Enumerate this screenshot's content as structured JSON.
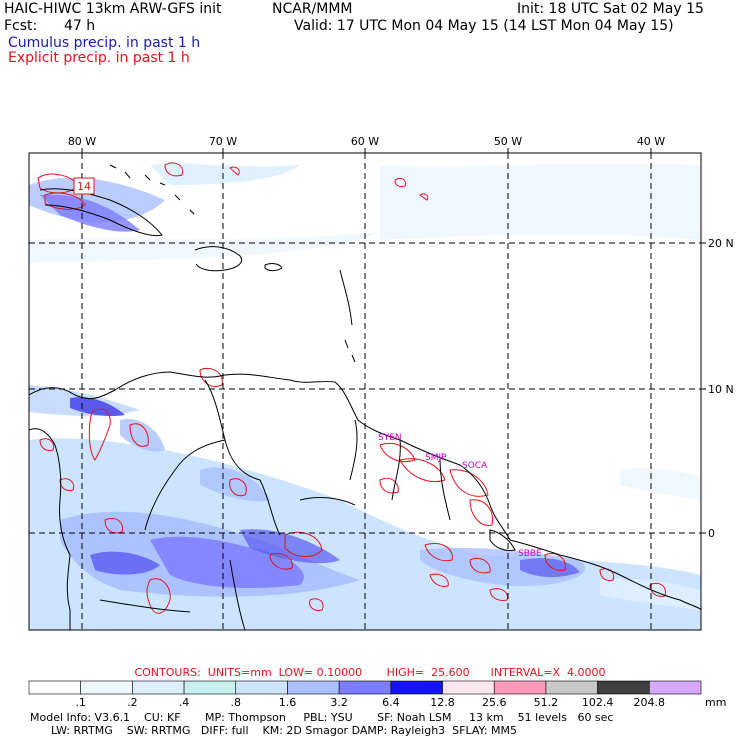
{
  "header": {
    "model_title": "HAIC-HIWC 13km ARW-GFS init",
    "center": "NCAR/MMM",
    "init": "Init: 18 UTC Sat 02 May 15",
    "fcst_label": "Fcst:",
    "fcst_value": "47 h",
    "valid": "Valid: 17 UTC Mon 04 May 15 (14 LST Mon 04 May 15)",
    "cumulus_label": "Cumulus precip. in past 1 h",
    "explicit_label": "Explicit precip. in past 1 h"
  },
  "map": {
    "lon_labels": [
      "80 W",
      "70 W",
      "60 W",
      "50 W",
      "40 W"
    ],
    "lat_labels": [
      "20 N",
      "10 N",
      "0"
    ],
    "station_labels": [
      "SYEN",
      "SMJP",
      "SOCA",
      "SBBE"
    ],
    "marker": "14"
  },
  "colors": {
    "cumulus": "#5a5af0",
    "explicit": "#e0141e",
    "grid": "#000000",
    "coast": "#000000"
  },
  "contours": {
    "label": "CONTOURS:",
    "units": "UNITS=mm",
    "low": "LOW= 0.10000",
    "high": "HIGH=  25.600",
    "interval": "INTERVAL=X  4.0000"
  },
  "colorbar": {
    "levels": [
      ".1",
      ".2",
      ".4",
      ".8",
      "1.6",
      "3.2",
      "6.4",
      "12.8",
      "25.6",
      "51.2",
      "102.4",
      "204.8"
    ],
    "unit": "mm",
    "fills": [
      "#ffffff",
      "#f0f8ff",
      "#dceeff",
      "#c8f0f0",
      "#cce4ff",
      "#aabfff",
      "#7c7cff",
      "#1414ff",
      "#ffe6ee",
      "#ff99bb",
      "#c8c8c8",
      "#404040",
      "#d6a8ff"
    ]
  },
  "model_info": {
    "line1": "Model Info: V3.6.1    CU: KF       MP: Thompson     PBL: YSU       SF: Noah LSM     13 km    51 levels   60 sec",
    "line2": "      LW: RRTMG    SW: RRTMG   DIFF: full    KM: 2D Smagor DAMP: Rayleigh3  SFLAY: MM5"
  }
}
